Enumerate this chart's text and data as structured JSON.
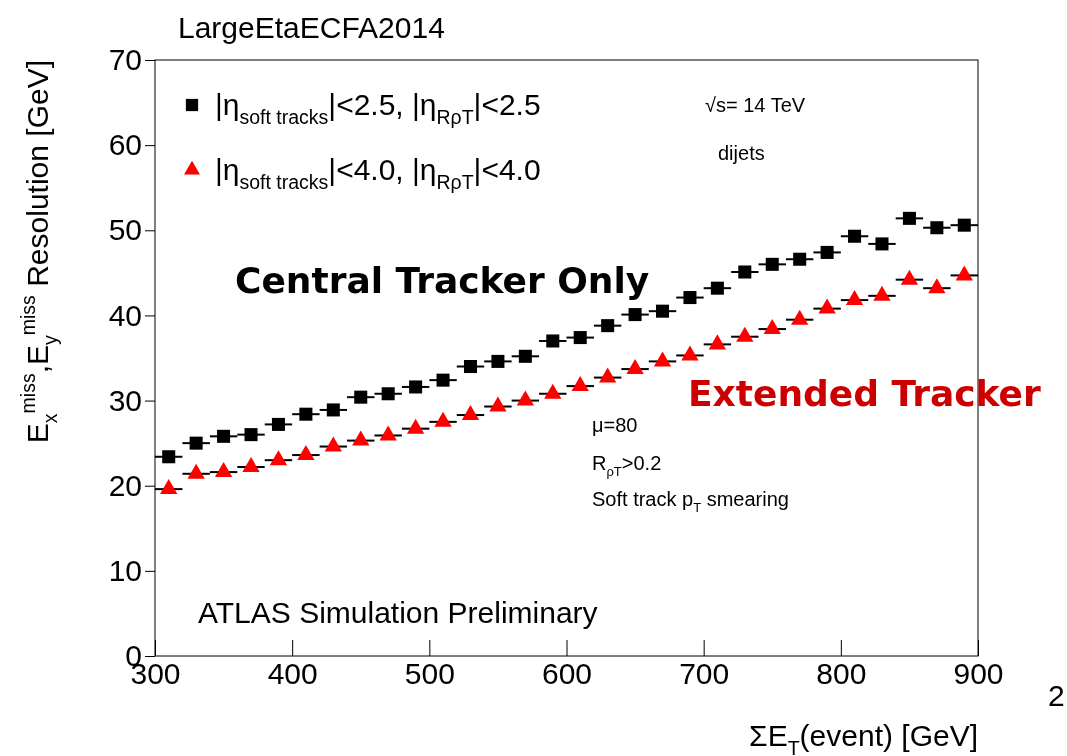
{
  "chart_data": {
    "type": "scatter",
    "title": "LargeEtaECFA2014",
    "xlabel": "ΣE$_{T}$(event) [GeV]",
    "ylabel": "E$_{x}$$^{miss}$,E$_{y}$$^{miss}$ Resolution [GeV]",
    "x": [
      310,
      330,
      350,
      370,
      390,
      410,
      430,
      450,
      470,
      490,
      510,
      530,
      550,
      570,
      590,
      610,
      630,
      650,
      670,
      690,
      710,
      730,
      750,
      770,
      790,
      810,
      830,
      850,
      870,
      890
    ],
    "series": [
      {
        "name": "|η$_{soft tracks}$|<2.5, |η$_{RρT}$|<2.5",
        "color": "#000000",
        "marker": "square",
        "values": [
          23.4,
          25.0,
          25.8,
          26.0,
          27.2,
          28.4,
          28.9,
          30.4,
          30.8,
          31.6,
          32.4,
          34.0,
          34.6,
          35.2,
          37.0,
          37.4,
          38.8,
          40.1,
          40.5,
          42.1,
          43.2,
          45.1,
          46.0,
          46.6,
          47.4,
          49.3,
          48.4,
          51.4,
          50.3,
          50.6
        ],
        "xerrors": [
          10,
          10,
          10,
          10,
          10,
          10,
          10,
          10,
          10,
          10,
          10,
          10,
          10,
          10,
          10,
          10,
          10,
          10,
          10,
          10,
          10,
          10,
          10,
          10,
          10,
          10,
          10,
          10,
          10,
          10
        ]
      },
      {
        "name": "|η$_{soft tracks}$|<4.0, |η$_{RρT}$|<4.0",
        "color": "#ff0000",
        "marker": "triangle",
        "values": [
          19.6,
          21.4,
          21.6,
          22.2,
          23.0,
          23.6,
          24.6,
          25.3,
          25.9,
          26.7,
          27.5,
          28.3,
          29.3,
          30.0,
          30.8,
          31.7,
          32.7,
          33.7,
          34.6,
          35.3,
          36.6,
          37.5,
          38.4,
          39.5,
          40.8,
          41.8,
          42.3,
          44.2,
          43.2,
          44.7
        ],
        "xerrors": [
          10,
          10,
          10,
          10,
          10,
          10,
          10,
          10,
          10,
          10,
          10,
          10,
          10,
          10,
          10,
          10,
          10,
          10,
          10,
          10,
          10,
          10,
          10,
          10,
          10,
          10,
          10,
          10,
          10,
          10
        ]
      }
    ],
    "xlim": [
      300,
      900
    ],
    "xticks": [
      300,
      400,
      500,
      600,
      700,
      800,
      900
    ],
    "ylim": [
      0,
      70
    ],
    "yticks": [
      0,
      10,
      20,
      30,
      40,
      50,
      60,
      70
    ],
    "grid": false,
    "legend": "top left",
    "annotations": [
      "√s= 14 TeV",
      "dijets",
      "μ=80",
      "R$_{ρT}$>0.2",
      "Soft track p$_{T}$ smearing",
      "ATLAS Simulation Preliminary",
      "Central Tracker Only",
      "Extended Tracker",
      "2"
    ]
  }
}
